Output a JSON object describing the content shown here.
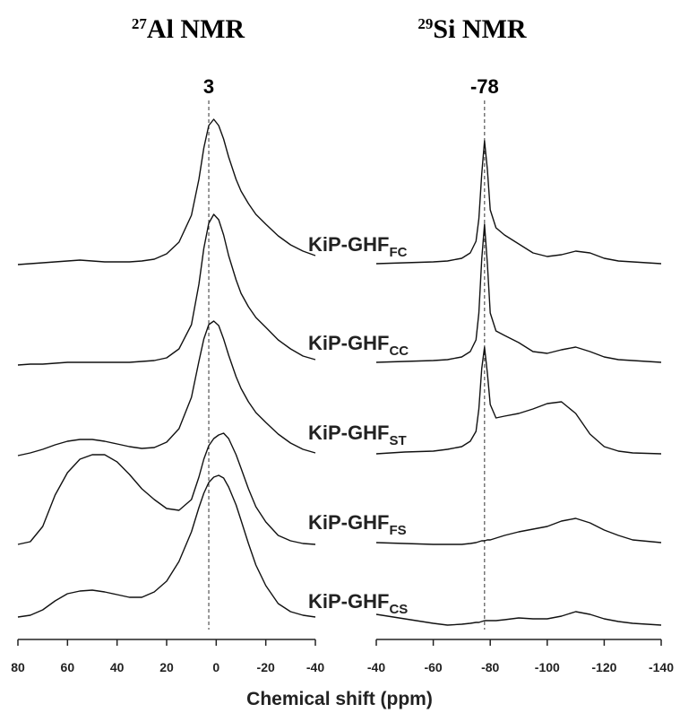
{
  "x_label": "Chemical shift (ppm)",
  "samples": [
    {
      "name": "KiP-GHF",
      "sub": "FC"
    },
    {
      "name": "KiP-GHF",
      "sub": "CC"
    },
    {
      "name": "KiP-GHF",
      "sub": "ST"
    },
    {
      "name": "KiP-GHF",
      "sub": "FS"
    },
    {
      "name": "KiP-GHF",
      "sub": "CS"
    }
  ],
  "chart_data": [
    {
      "type": "line",
      "title": {
        "sup": "27",
        "text": "Al NMR"
      },
      "xlim": [
        80,
        -40
      ],
      "xticks": [
        80,
        60,
        40,
        20,
        0,
        -20,
        -40
      ],
      "ref_line": 3,
      "color": "#111111",
      "x": [
        80,
        75,
        70,
        65,
        60,
        55,
        50,
        45,
        40,
        35,
        30,
        25,
        20,
        15,
        10,
        7,
        5,
        3,
        1,
        -1,
        -3,
        -5,
        -8,
        -10,
        -13,
        -16,
        -20,
        -25,
        -30,
        -35,
        -40
      ],
      "series": [
        {
          "values": [
            0,
            1,
            2,
            3,
            4,
            5,
            4,
            3,
            3,
            3,
            4,
            6,
            12,
            25,
            55,
            95,
            130,
            155,
            162,
            155,
            140,
            120,
            95,
            82,
            68,
            56,
            45,
            32,
            22,
            15,
            10
          ]
        },
        {
          "values": [
            0,
            1,
            1,
            2,
            3,
            3,
            3,
            3,
            3,
            3,
            4,
            5,
            8,
            18,
            45,
            90,
            130,
            158,
            168,
            162,
            145,
            122,
            95,
            80,
            65,
            53,
            42,
            28,
            18,
            10,
            6
          ]
        },
        {
          "values": [
            0,
            3,
            7,
            12,
            16,
            18,
            18,
            16,
            13,
            10,
            8,
            9,
            15,
            30,
            65,
            105,
            130,
            146,
            150,
            145,
            130,
            112,
            88,
            75,
            60,
            48,
            37,
            24,
            14,
            7,
            3
          ]
        },
        {
          "values": [
            0,
            3,
            20,
            55,
            80,
            95,
            100,
            100,
            92,
            78,
            62,
            50,
            40,
            38,
            50,
            75,
            95,
            110,
            118,
            122,
            124,
            118,
            100,
            85,
            62,
            42,
            25,
            10,
            4,
            1,
            0
          ]
        },
        {
          "values": [
            0,
            2,
            8,
            18,
            26,
            29,
            30,
            28,
            25,
            22,
            22,
            28,
            40,
            62,
            95,
            122,
            138,
            150,
            156,
            158,
            155,
            145,
            125,
            108,
            82,
            58,
            35,
            15,
            6,
            2,
            0
          ]
        }
      ]
    },
    {
      "type": "line",
      "title": {
        "sup": "29",
        "text": "Si NMR"
      },
      "xlim": [
        -40,
        -140
      ],
      "xticks": [
        -40,
        -60,
        -80,
        -100,
        -120,
        -140
      ],
      "ref_line": -78,
      "color": "#111111",
      "x": [
        -40,
        -50,
        -60,
        -65,
        -70,
        -73,
        -75,
        -76,
        -77,
        -78,
        -79,
        -80,
        -82,
        -85,
        -90,
        -95,
        -100,
        -105,
        -110,
        -115,
        -120,
        -125,
        -130,
        -140
      ],
      "series": [
        {
          "values": [
            0,
            1,
            2,
            3,
            6,
            12,
            25,
            50,
            100,
            137,
            105,
            60,
            40,
            32,
            22,
            12,
            8,
            10,
            14,
            12,
            6,
            3,
            2,
            0
          ]
        },
        {
          "values": [
            0,
            1,
            2,
            3,
            6,
            12,
            25,
            55,
            115,
            154,
            110,
            55,
            35,
            30,
            22,
            12,
            10,
            14,
            17,
            12,
            6,
            3,
            2,
            0
          ]
        },
        {
          "values": [
            0,
            2,
            3,
            5,
            8,
            14,
            25,
            50,
            95,
            119,
            90,
            55,
            40,
            42,
            45,
            50,
            56,
            58,
            45,
            22,
            8,
            3,
            1,
            0
          ]
        },
        {
          "values": [
            0,
            -1,
            -2,
            -2,
            -2,
            -1,
            0,
            1,
            2,
            2,
            3,
            3,
            5,
            8,
            12,
            15,
            18,
            24,
            27,
            22,
            14,
            8,
            3,
            0
          ]
        },
        {
          "values": [
            10,
            5,
            0,
            -2,
            -1,
            0,
            1,
            1,
            2,
            3,
            3,
            3,
            3,
            4,
            6,
            5,
            5,
            8,
            13,
            10,
            5,
            2,
            0,
            -2
          ]
        }
      ]
    }
  ]
}
